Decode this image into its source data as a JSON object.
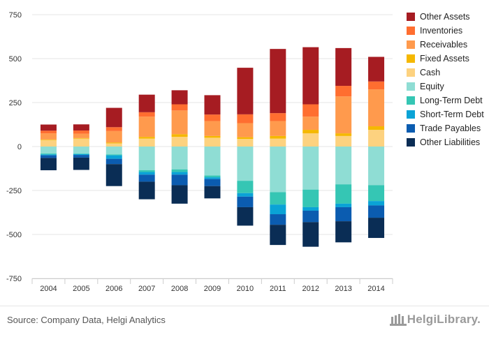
{
  "chart_data": {
    "type": "bar",
    "stacked": true,
    "categories": [
      "2004",
      "2005",
      "2006",
      "2007",
      "2008",
      "2009",
      "2010",
      "2011",
      "2012",
      "2013",
      "2014"
    ],
    "ylim": [
      -750,
      750
    ],
    "yticks": [
      -750,
      -500,
      -250,
      0,
      250,
      500,
      750
    ],
    "title": "",
    "xlabel": "",
    "ylabel": "",
    "legend_position": "right",
    "grid": true,
    "series": [
      {
        "name": "Cash",
        "color": "#FDD27F",
        "values": [
          37,
          45,
          18,
          45,
          55,
          50,
          43,
          45,
          75,
          60,
          95
        ]
      },
      {
        "name": "Fixed Assets",
        "color": "#F5B800",
        "values": [
          3,
          3,
          5,
          10,
          15,
          10,
          10,
          15,
          20,
          15,
          20
        ]
      },
      {
        "name": "Receivables",
        "color": "#FF9A4D",
        "values": [
          35,
          25,
          65,
          115,
          135,
          85,
          80,
          85,
          75,
          210,
          210
        ]
      },
      {
        "name": "Inventories",
        "color": "#FF6E30",
        "values": [
          15,
          18,
          22,
          25,
          35,
          37,
          50,
          45,
          70,
          60,
          45
        ]
      },
      {
        "name": "Other Assets",
        "color": "#A61C22",
        "values": [
          35,
          35,
          110,
          100,
          80,
          110,
          265,
          365,
          325,
          215,
          140
        ]
      },
      {
        "name": "Equity",
        "color": "#8FDDD4",
        "values": [
          -40,
          -40,
          -45,
          -135,
          -130,
          -165,
          -195,
          -260,
          -245,
          -215,
          -220
        ]
      },
      {
        "name": "Long-Term Debt",
        "color": "#35C6B4",
        "values": [
          -5,
          -3,
          -5,
          -10,
          -15,
          -10,
          -70,
          -70,
          -100,
          -110,
          -90
        ]
      },
      {
        "name": "Short-Term Debt",
        "color": "#0AA3D6",
        "values": [
          -5,
          -5,
          -20,
          -15,
          -15,
          -10,
          -20,
          -55,
          -20,
          -20,
          -25
        ]
      },
      {
        "name": "Trade Payables",
        "color": "#0B5CB0",
        "values": [
          -15,
          -15,
          -30,
          -40,
          -60,
          -40,
          -60,
          -60,
          -65,
          -80,
          -70
        ]
      },
      {
        "name": "Other Liabilities",
        "color": "#0A2D55",
        "values": [
          -70,
          -70,
          -125,
          -100,
          -105,
          -70,
          -105,
          -115,
          -140,
          -120,
          -115
        ]
      }
    ]
  },
  "legend_order": [
    "Other Assets",
    "Inventories",
    "Receivables",
    "Fixed Assets",
    "Cash",
    "Equity",
    "Long-Term Debt",
    "Short-Term Debt",
    "Trade Payables",
    "Other Liabilities"
  ],
  "footer": {
    "source": "Source: Company Data, Helgi Analytics",
    "brand": "HelgiLibrary."
  }
}
